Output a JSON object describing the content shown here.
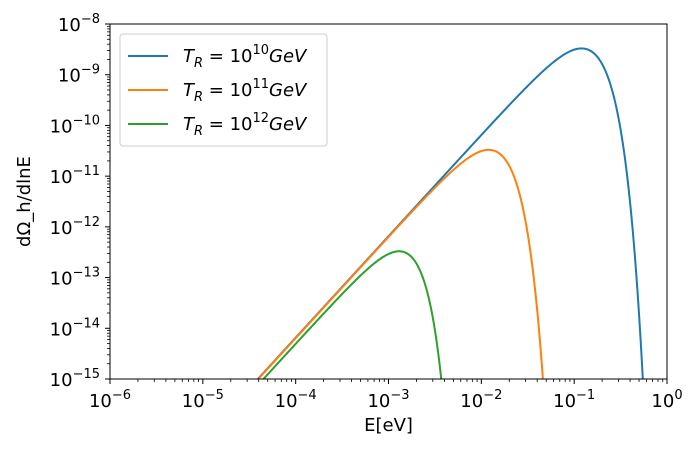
{
  "chart_data": {
    "type": "line",
    "title": "",
    "xlabel": "E[eV]",
    "ylabel": "dΩ_h/dlnE",
    "xscale": "log",
    "yscale": "log",
    "xlim": [
      1e-06,
      1
    ],
    "ylim": [
      1e-15,
      1e-08
    ],
    "legend_position": "top-left",
    "grid": false,
    "x_ticks": [
      {
        "value": 1e-06,
        "base": "10",
        "exp": "−6"
      },
      {
        "value": 1e-05,
        "base": "10",
        "exp": "−5"
      },
      {
        "value": 0.0001,
        "base": "10",
        "exp": "−4"
      },
      {
        "value": 0.001,
        "base": "10",
        "exp": "−3"
      },
      {
        "value": 0.01,
        "base": "10",
        "exp": "−2"
      },
      {
        "value": 0.1,
        "base": "10",
        "exp": "−1"
      },
      {
        "value": 1,
        "base": "10",
        "exp": "0"
      }
    ],
    "y_ticks": [
      {
        "value": 1e-15,
        "base": "10",
        "exp": "−15"
      },
      {
        "value": 1e-14,
        "base": "10",
        "exp": "−14"
      },
      {
        "value": 1e-13,
        "base": "10",
        "exp": "−13"
      },
      {
        "value": 1e-12,
        "base": "10",
        "exp": "−12"
      },
      {
        "value": 1e-11,
        "base": "10",
        "exp": "−11"
      },
      {
        "value": 1e-10,
        "base": "10",
        "exp": "−10"
      },
      {
        "value": 1e-09,
        "base": "10",
        "exp": "−9"
      },
      {
        "value": 1e-08,
        "base": "10",
        "exp": "−8"
      }
    ],
    "series": [
      {
        "name": "T_R = 10^10 GeV",
        "label_base": "T",
        "label_sub": "R",
        "label_mid": " = 10",
        "label_exp": "10",
        "label_unit": "GeV",
        "color": "#1f77b4",
        "peak_x": 0.12,
        "peak_y": 3.3e-09,
        "low_slope": 2,
        "cutoff_x": 0.55
      },
      {
        "name": "T_R = 10^11 GeV",
        "label_base": "T",
        "label_sub": "R",
        "label_mid": " = 10",
        "label_exp": "11",
        "label_unit": "GeV",
        "color": "#ff7f0e",
        "peak_x": 0.012,
        "peak_y": 3.3e-11,
        "low_slope": 2,
        "cutoff_x": 0.046
      },
      {
        "name": "T_R = 10^12 GeV",
        "label_base": "T",
        "label_sub": "R",
        "label_mid": " = 10",
        "label_exp": "12",
        "label_unit": "GeV",
        "color": "#2ca02c",
        "peak_x": 0.0013,
        "peak_y": 3.3e-13,
        "low_slope": 2,
        "cutoff_x": 0.0037
      }
    ]
  }
}
